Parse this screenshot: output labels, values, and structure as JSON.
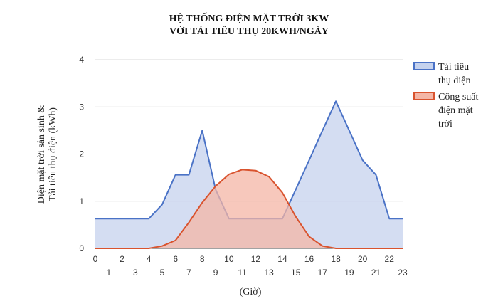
{
  "chart_data": {
    "type": "area",
    "title": [
      "HỆ THỐNG ĐIỆN MẶT TRỜI 3KW",
      "VỚI TẢI TIÊU THỤ 20KWH/NGÀY"
    ],
    "ylabel": [
      "Điện mặt trời sản sinh &",
      "Tải tiêu thụ điện (kWh)"
    ],
    "xlabel": "(Giờ)",
    "ylim": [
      0,
      4
    ],
    "yticks": [
      "0",
      "1",
      "2",
      "3",
      "4"
    ],
    "xlim": [
      0,
      23
    ],
    "xticks_even": [
      "0",
      "2",
      "4",
      "6",
      "8",
      "10",
      "12",
      "14",
      "16",
      "18",
      "20",
      "22"
    ],
    "xticks_odd": [
      "1",
      "3",
      "5",
      "7",
      "9",
      "11",
      "13",
      "15",
      "17",
      "19",
      "21",
      "23"
    ],
    "grid": true,
    "legend_position": "right",
    "series": [
      {
        "name": "Tải tiêu thụ điện",
        "legend_lines": [
          "Tải tiêu",
          "thụ điện"
        ],
        "line_color": "#4a72c6",
        "fill_color": "#c5d2ee",
        "x": [
          0,
          1,
          2,
          3,
          4,
          5,
          6,
          7,
          8,
          9,
          10,
          11,
          12,
          13,
          14,
          15,
          16,
          17,
          18,
          19,
          20,
          21,
          22,
          23
        ],
        "values": [
          0.63,
          0.63,
          0.63,
          0.63,
          0.63,
          0.93,
          1.56,
          1.56,
          2.5,
          1.25,
          0.63,
          0.63,
          0.63,
          0.63,
          0.63,
          1.25,
          1.87,
          2.5,
          3.12,
          2.5,
          1.87,
          1.56,
          0.63,
          0.63
        ]
      },
      {
        "name": "Công suất điện mặt trời",
        "legend_lines": [
          "Công suất",
          "điện mặt",
          "trời"
        ],
        "line_color": "#d9532e",
        "fill_color": "#f4b6a6",
        "x": [
          0,
          1,
          2,
          3,
          4,
          5,
          6,
          7,
          8,
          9,
          10,
          11,
          12,
          13,
          14,
          15,
          16,
          17,
          18,
          19,
          20,
          21,
          22,
          23
        ],
        "values": [
          0,
          0,
          0,
          0,
          0,
          0.05,
          0.17,
          0.55,
          0.97,
          1.32,
          1.57,
          1.67,
          1.65,
          1.52,
          1.18,
          0.67,
          0.25,
          0.05,
          0,
          0,
          0,
          0,
          0,
          0
        ]
      }
    ]
  }
}
